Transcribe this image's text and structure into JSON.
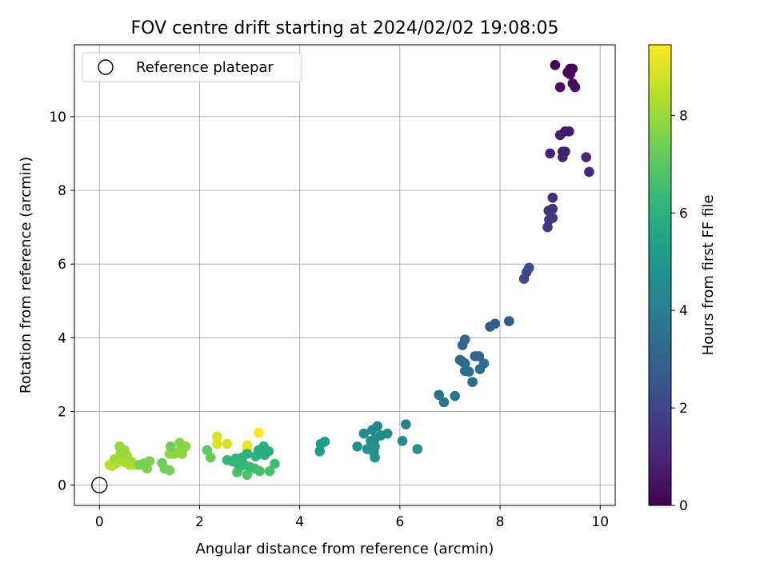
{
  "chart_data": {
    "type": "scatter",
    "title": "FOV centre drift starting at 2024/02/02 19:08:05",
    "xlabel": "Angular distance from reference (arcmin)",
    "ylabel": "Rotation from reference (arcmin)",
    "xlim": [
      -0.5,
      10.3
    ],
    "ylim": [
      -0.55,
      11.95
    ],
    "xticks": [
      0,
      2,
      4,
      6,
      8,
      10
    ],
    "yticks": [
      0,
      2,
      4,
      6,
      8,
      10
    ],
    "grid": true,
    "legend": {
      "position": "top-left",
      "entries": [
        "Reference platepar"
      ]
    },
    "reference_point": {
      "x": 0,
      "y": 0,
      "marker": "open-circle",
      "label": "Reference platepar"
    },
    "colorbar": {
      "label": "Hours from first FF file",
      "colormap": "viridis",
      "range": [
        0,
        9.45
      ],
      "ticks": [
        0,
        2,
        4,
        6,
        8
      ],
      "colors": [
        "#440154",
        "#482878",
        "#3e4989",
        "#31688e",
        "#26828e",
        "#1f9e89",
        "#35b779",
        "#6ece58",
        "#b5de2b",
        "#fde725"
      ]
    },
    "points": [
      [
        9.1,
        11.4,
        0.05
      ],
      [
        9.4,
        11.3,
        0.1
      ],
      [
        9.45,
        11.3,
        0.15
      ],
      [
        9.35,
        11.2,
        0.2
      ],
      [
        9.4,
        11.15,
        0.25
      ],
      [
        9.45,
        10.9,
        0.3
      ],
      [
        9.2,
        10.8,
        0.35
      ],
      [
        9.5,
        10.8,
        0.4
      ],
      [
        9.3,
        9.6,
        0.6
      ],
      [
        9.38,
        9.6,
        0.65
      ],
      [
        9.2,
        9.5,
        0.7
      ],
      [
        9.25,
        9.05,
        0.8
      ],
      [
        9.3,
        9.05,
        0.85
      ],
      [
        9.0,
        9.0,
        0.9
      ],
      [
        9.72,
        8.9,
        0.95
      ],
      [
        9.25,
        8.9,
        1.0
      ],
      [
        9.78,
        8.5,
        1.05
      ],
      [
        9.05,
        7.8,
        1.3
      ],
      [
        9.05,
        7.5,
        1.4
      ],
      [
        8.97,
        7.45,
        1.45
      ],
      [
        9.05,
        7.25,
        1.5
      ],
      [
        8.98,
        7.2,
        1.55
      ],
      [
        8.95,
        7.0,
        1.6
      ],
      [
        8.58,
        5.9,
        2.1
      ],
      [
        8.53,
        5.78,
        2.15
      ],
      [
        8.48,
        5.6,
        2.2
      ],
      [
        8.18,
        4.45,
        2.6
      ],
      [
        7.9,
        4.38,
        2.7
      ],
      [
        7.8,
        4.3,
        2.75
      ],
      [
        7.3,
        3.95,
        3.0
      ],
      [
        7.25,
        3.8,
        3.05
      ],
      [
        7.5,
        3.5,
        3.1
      ],
      [
        7.58,
        3.5,
        3.12
      ],
      [
        7.2,
        3.4,
        3.15
      ],
      [
        7.25,
        3.35,
        3.2
      ],
      [
        7.3,
        3.3,
        3.22
      ],
      [
        7.68,
        3.3,
        3.25
      ],
      [
        7.6,
        3.15,
        3.28
      ],
      [
        7.3,
        3.1,
        3.3
      ],
      [
        7.38,
        3.08,
        3.32
      ],
      [
        7.45,
        2.8,
        3.35
      ],
      [
        6.78,
        2.45,
        3.6
      ],
      [
        7.1,
        2.42,
        3.65
      ],
      [
        6.88,
        2.25,
        3.7
      ],
      [
        6.12,
        1.65,
        4.3
      ],
      [
        5.55,
        1.6,
        4.4
      ],
      [
        5.45,
        1.5,
        4.45
      ],
      [
        5.28,
        1.4,
        4.5
      ],
      [
        5.75,
        1.4,
        4.52
      ],
      [
        5.62,
        1.35,
        4.55
      ],
      [
        5.5,
        1.25,
        4.6
      ],
      [
        5.42,
        1.2,
        4.62
      ],
      [
        6.05,
        1.2,
        4.65
      ],
      [
        5.15,
        1.05,
        4.7
      ],
      [
        5.5,
        1.05,
        4.72
      ],
      [
        5.35,
        0.98,
        4.75
      ],
      [
        5.48,
        0.9,
        4.78
      ],
      [
        6.35,
        0.98,
        4.8
      ],
      [
        5.5,
        0.75,
        4.85
      ],
      [
        4.5,
        1.18,
        5.1
      ],
      [
        4.42,
        1.12,
        5.15
      ],
      [
        4.4,
        0.92,
        5.2
      ],
      [
        3.28,
        1.05,
        5.8
      ],
      [
        3.18,
        0.95,
        5.85
      ],
      [
        3.38,
        0.92,
        5.9
      ],
      [
        3.22,
        0.85,
        5.95
      ],
      [
        3.3,
        0.82,
        6.0
      ],
      [
        2.95,
        0.85,
        6.05
      ],
      [
        3.12,
        0.78,
        6.1
      ],
      [
        2.85,
        0.75,
        6.15
      ],
      [
        2.72,
        0.72,
        6.2
      ],
      [
        2.65,
        0.65,
        6.25
      ],
      [
        2.75,
        0.6,
        6.3
      ],
      [
        2.55,
        0.68,
        6.35
      ],
      [
        2.9,
        0.55,
        6.4
      ],
      [
        3.0,
        0.5,
        6.45
      ],
      [
        3.5,
        0.58,
        6.5
      ],
      [
        2.8,
        0.48,
        6.55
      ],
      [
        3.1,
        0.45,
        6.6
      ],
      [
        3.2,
        0.38,
        6.65
      ],
      [
        3.4,
        0.38,
        6.7
      ],
      [
        2.75,
        0.35,
        6.75
      ],
      [
        2.95,
        0.28,
        6.8
      ],
      [
        2.15,
        0.95,
        7.1
      ],
      [
        2.22,
        0.75,
        7.2
      ],
      [
        1.42,
        1.05,
        7.3
      ],
      [
        1.25,
        0.6,
        7.35
      ],
      [
        1.3,
        0.45,
        7.4
      ],
      [
        1.4,
        0.4,
        7.45
      ],
      [
        0.9,
        0.6,
        7.5
      ],
      [
        0.8,
        0.55,
        7.55
      ],
      [
        1.0,
        0.65,
        7.6
      ],
      [
        0.95,
        0.45,
        7.62
      ],
      [
        1.6,
        1.15,
        7.7
      ],
      [
        1.72,
        1.05,
        7.75
      ],
      [
        1.5,
        0.85,
        7.8
      ],
      [
        1.58,
        0.9,
        7.82
      ],
      [
        1.65,
        0.85,
        7.85
      ],
      [
        1.4,
        0.85,
        7.88
      ],
      [
        0.4,
        1.05,
        7.95
      ],
      [
        0.5,
        0.95,
        8.0
      ],
      [
        0.42,
        0.85,
        8.05
      ],
      [
        0.55,
        0.8,
        8.1
      ],
      [
        0.3,
        0.7,
        8.15
      ],
      [
        0.65,
        0.62,
        8.2
      ],
      [
        0.52,
        0.62,
        8.25
      ],
      [
        0.42,
        0.65,
        8.3
      ],
      [
        0.32,
        0.58,
        8.35
      ],
      [
        0.25,
        0.52,
        8.4
      ],
      [
        0.6,
        0.55,
        8.45
      ],
      [
        0.7,
        0.55,
        8.5
      ],
      [
        0.2,
        0.55,
        8.55
      ],
      [
        2.55,
        1.12,
        8.9
      ],
      [
        2.35,
        1.12,
        8.95
      ],
      [
        2.35,
        1.32,
        9.0
      ],
      [
        2.95,
        1.08,
        9.1
      ],
      [
        2.95,
        0.95,
        9.2
      ],
      [
        3.18,
        1.42,
        9.4
      ]
    ]
  }
}
